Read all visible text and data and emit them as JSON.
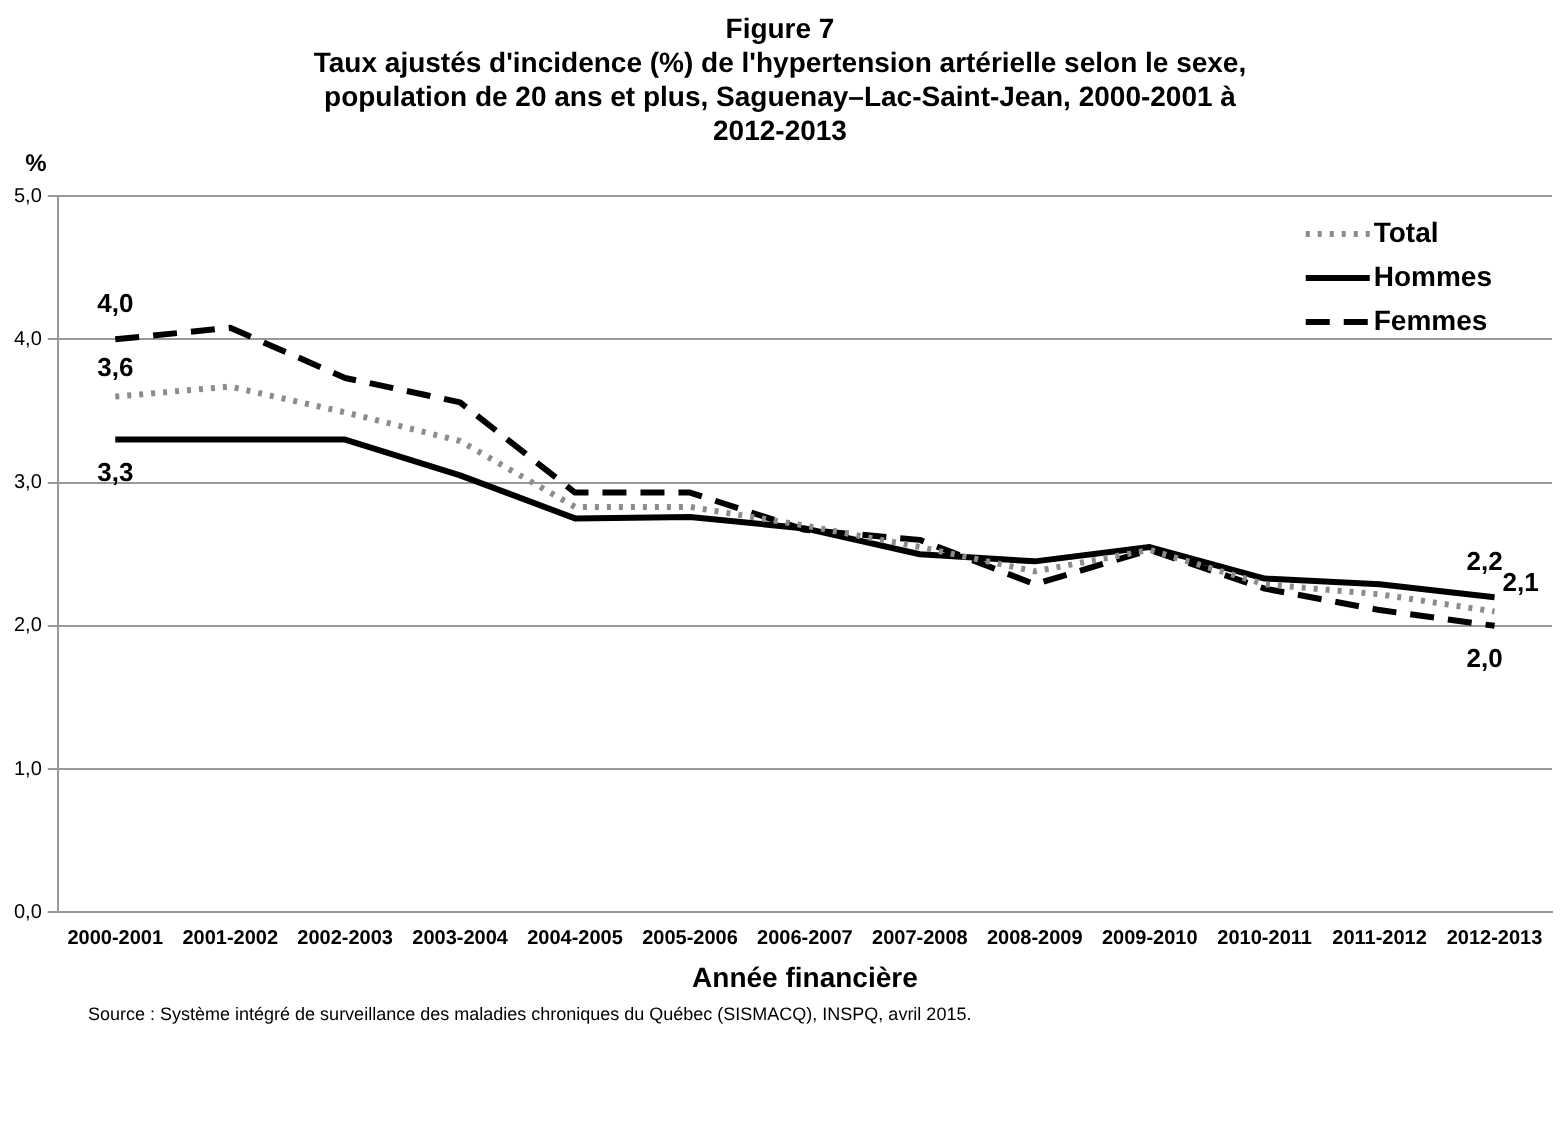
{
  "chart_data": {
    "type": "line",
    "title": "Figure 7",
    "subtitle": "Taux ajustés d'incidence (%) de l'hypertension artérielle selon le sexe, population de 20 ans et plus, Saguenay–Lac-Saint-Jean, 2000-2001 à 2012-2013",
    "xlabel": "Année financière",
    "ylabel": "%",
    "categories": [
      "2000-2001",
      "2001-2002",
      "2002-2003",
      "2003-2004",
      "2004-2005",
      "2005-2006",
      "2006-2007",
      "2007-2008",
      "2008-2009",
      "2009-2010",
      "2010-2011",
      "2011-2012",
      "2012-2013"
    ],
    "series": [
      {
        "name": "Total",
        "color": "#8c8c8c",
        "line_style": "dotted",
        "values": [
          3.6,
          3.67,
          3.49,
          3.29,
          2.83,
          2.83,
          2.7,
          2.55,
          2.38,
          2.53,
          2.29,
          2.22,
          2.1
        ],
        "value_labels": [
          "3,6",
          null,
          null,
          null,
          null,
          null,
          null,
          null,
          null,
          null,
          null,
          null,
          "2,1"
        ]
      },
      {
        "name": "Hommes",
        "color": "#000000",
        "line_style": "solid",
        "values": [
          3.3,
          3.3,
          3.3,
          3.05,
          2.75,
          2.76,
          2.68,
          2.5,
          2.45,
          2.55,
          2.33,
          2.29,
          2.2
        ],
        "value_labels": [
          "3,3",
          null,
          null,
          null,
          null,
          null,
          null,
          null,
          null,
          null,
          null,
          null,
          "2,2"
        ]
      },
      {
        "name": "Femmes",
        "color": "#000000",
        "line_style": "dashed",
        "values": [
          4.0,
          4.08,
          3.73,
          3.56,
          2.93,
          2.93,
          2.67,
          2.6,
          2.29,
          2.53,
          2.26,
          2.11,
          2.0
        ],
        "value_labels": [
          "4,0",
          null,
          null,
          null,
          null,
          null,
          null,
          null,
          null,
          null,
          null,
          null,
          "2,0"
        ]
      }
    ],
    "ylim": [
      0,
      5
    ],
    "yticks": [
      {
        "value": 0,
        "label": "0,0"
      },
      {
        "value": 1,
        "label": "1,0"
      },
      {
        "value": 2,
        "label": "2,0"
      },
      {
        "value": 3,
        "label": "3,0"
      },
      {
        "value": 4,
        "label": "4,0"
      },
      {
        "value": 5,
        "label": "5,0"
      }
    ],
    "grid": "y",
    "legend": "top right",
    "marker": "none",
    "annotations": [
      "Source : Système intégré de surveillance des maladies chroniques du Québec (SISMACQ), INSPQ, avril 2015."
    ]
  }
}
